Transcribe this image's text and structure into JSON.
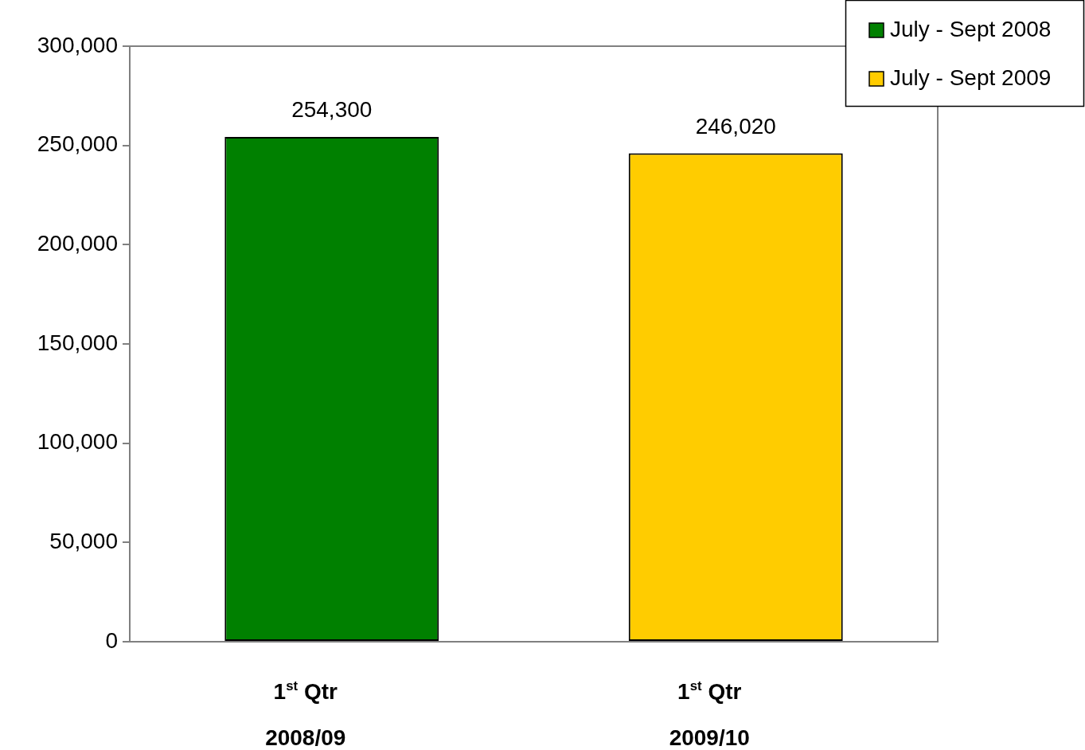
{
  "chart_data": {
    "type": "bar",
    "categories": [
      "1$^{st}$ Qtr\n2008/09",
      "1$^{st}$ Qtr\n2009/10"
    ],
    "series": [
      {
        "name": "July - Sept 2008",
        "color": "#008000",
        "values": [
          254300,
          null
        ],
        "value_labels": [
          "254,300",
          null
        ]
      },
      {
        "name": "July - Sept 2009",
        "color": "#ffcc00",
        "values": [
          null,
          246020
        ],
        "value_labels": [
          null,
          "246,020"
        ]
      }
    ],
    "ylim": [
      0,
      300000
    ],
    "yticks": [
      0,
      {
        "value": 50000,
        "label": "50,000"
      },
      {
        "value": 100000,
        "label": "100,000"
      },
      {
        "value": 150000,
        "label": "150,000"
      },
      {
        "value": 200000,
        "label": "200,000"
      },
      {
        "value": 250000,
        "label": "250,000"
      },
      {
        "value": 300000,
        "label": "300,000"
      }
    ],
    "grid": false,
    "legend": "top right"
  }
}
